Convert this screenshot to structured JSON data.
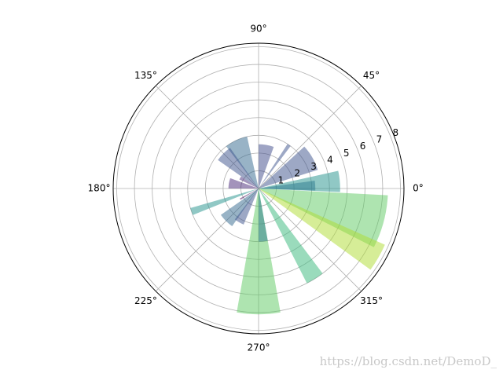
{
  "chart_data": {
    "type": "polar-bar",
    "x": [
      345,
      330,
      302,
      270,
      5,
      3,
      30,
      55,
      80,
      115,
      135,
      170,
      199,
      225,
      240,
      210,
      275,
      150
    ],
    "widths": [
      24,
      12,
      10,
      20,
      15,
      10,
      25,
      4,
      20,
      25,
      20,
      20,
      6,
      20,
      15,
      4,
      10,
      10
    ],
    "values": [
      7.3,
      7.8,
      6.0,
      7.1,
      4.6,
      3.2,
      3.5,
      3.0,
      2.5,
      3.0,
      2.8,
      1.7,
      4.0,
      2.6,
      2.2,
      1.2,
      3.0,
      1.2
    ],
    "colors": [
      "#5ec962",
      "#addc30",
      "#35b779",
      "#5ec962",
      "#21918c",
      "#2a788e",
      "#3b528b",
      "#3b528b",
      "#3e4989",
      "#31688e",
      "#3b528b",
      "#482878",
      "#21918c",
      "#31688e",
      "#3b528b",
      "#440154",
      "#2a788e",
      "#472d7b"
    ],
    "opacity": 0.5,
    "ylim": [
      0,
      8.2
    ],
    "yticks": [
      1,
      2,
      3,
      4,
      5,
      6,
      7,
      8
    ],
    "xticks": [
      {
        "value": 0,
        "label": "0°"
      },
      {
        "value": 45,
        "label": "45°"
      },
      {
        "value": 90,
        "label": "90°"
      },
      {
        "value": 135,
        "label": "135°"
      },
      {
        "value": 180,
        "label": "180°"
      },
      {
        "value": 225,
        "label": "225°"
      },
      {
        "value": 270,
        "label": "270°"
      },
      {
        "value": 315,
        "label": "315°"
      }
    ],
    "grid": true,
    "watermark": "https://blog.csdn.net/DemoD_"
  }
}
